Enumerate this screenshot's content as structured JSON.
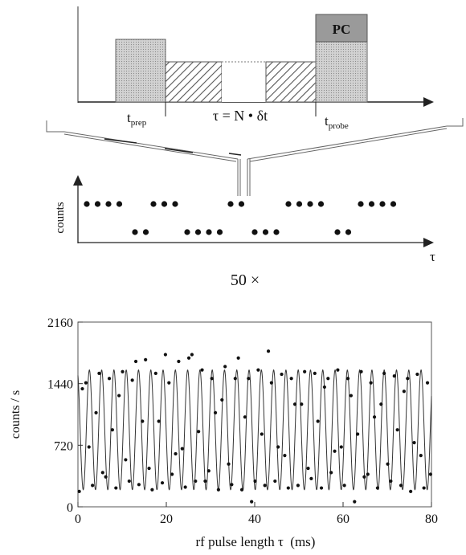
{
  "sequence": {
    "pc_label": "PC",
    "t_prep_main": "t",
    "t_prep_sub": "prep",
    "tau_label": "τ = N • δt",
    "t_probe_main": "t",
    "t_probe_sub": "probe"
  },
  "counts_panel": {
    "y_label": "counts",
    "x_label": "τ",
    "high_dot_groups": [
      4,
      3,
      2,
      4,
      4
    ],
    "low_dot_groups": [
      2,
      4,
      3,
      2
    ]
  },
  "repeat_label": "50 ×",
  "chart_data": {
    "type": "scatter",
    "title": "",
    "xlabel": "rf pulse length τ  (ms)",
    "ylabel": "counts / s",
    "xlim": [
      0,
      80
    ],
    "ylim": [
      0,
      2160
    ],
    "xticks": [
      0,
      20,
      40,
      60,
      80
    ],
    "yticks": [
      0,
      720,
      1440,
      2160
    ],
    "xtick_labels": [
      "0",
      "20",
      "40",
      "60",
      "80"
    ],
    "ytick_labels": [
      "0",
      "720",
      "1440",
      "2160"
    ],
    "fit": {
      "baseline": 200,
      "peak": 1600,
      "period_ms": 2.78,
      "phase_ms": 1.2
    },
    "points": [
      [
        0.3,
        180
      ],
      [
        1.0,
        1380
      ],
      [
        1.8,
        1450
      ],
      [
        2.5,
        700
      ],
      [
        3.3,
        250
      ],
      [
        4.1,
        1100
      ],
      [
        4.8,
        1560
      ],
      [
        5.6,
        400
      ],
      [
        6.3,
        350
      ],
      [
        7.1,
        1500
      ],
      [
        7.8,
        900
      ],
      [
        8.6,
        220
      ],
      [
        9.3,
        1300
      ],
      [
        10.1,
        1580
      ],
      [
        10.8,
        550
      ],
      [
        11.6,
        300
      ],
      [
        12.3,
        1480
      ],
      [
        13.1,
        1700
      ],
      [
        13.8,
        260
      ],
      [
        14.6,
        1000
      ],
      [
        15.3,
        1720
      ],
      [
        16.1,
        450
      ],
      [
        16.8,
        200
      ],
      [
        17.6,
        1560
      ],
      [
        18.3,
        1000
      ],
      [
        19.1,
        280
      ],
      [
        19.8,
        1780
      ],
      [
        20.6,
        1450
      ],
      [
        21.3,
        380
      ],
      [
        22.1,
        620
      ],
      [
        22.8,
        1700
      ],
      [
        23.6,
        680
      ],
      [
        24.3,
        230
      ],
      [
        25.1,
        1740
      ],
      [
        25.8,
        1780
      ],
      [
        26.6,
        300
      ],
      [
        27.3,
        880
      ],
      [
        28.1,
        1600
      ],
      [
        28.8,
        300
      ],
      [
        29.6,
        420
      ],
      [
        30.3,
        1500
      ],
      [
        31.1,
        1100
      ],
      [
        31.8,
        200
      ],
      [
        32.6,
        1250
      ],
      [
        33.3,
        1640
      ],
      [
        34.1,
        500
      ],
      [
        34.8,
        260
      ],
      [
        35.6,
        1500
      ],
      [
        36.3,
        1740
      ],
      [
        37.1,
        200
      ],
      [
        37.8,
        1050
      ],
      [
        38.6,
        1500
      ],
      [
        39.3,
        60
      ],
      [
        40.1,
        300
      ],
      [
        40.8,
        1600
      ],
      [
        41.6,
        850
      ],
      [
        42.3,
        250
      ],
      [
        43.1,
        1820
      ],
      [
        43.8,
        1450
      ],
      [
        44.6,
        300
      ],
      [
        45.3,
        700
      ],
      [
        46.1,
        1550
      ],
      [
        46.8,
        600
      ],
      [
        47.6,
        220
      ],
      [
        48.3,
        1500
      ],
      [
        49.1,
        1200
      ],
      [
        49.8,
        250
      ],
      [
        50.6,
        1200
      ],
      [
        51.3,
        1580
      ],
      [
        52.1,
        450
      ],
      [
        52.8,
        330
      ],
      [
        53.6,
        1560
      ],
      [
        54.3,
        1000
      ],
      [
        55.1,
        220
      ],
      [
        55.8,
        1400
      ],
      [
        56.6,
        1500
      ],
      [
        57.3,
        400
      ],
      [
        58.1,
        650
      ],
      [
        58.8,
        1600
      ],
      [
        59.6,
        700
      ],
      [
        60.3,
        250
      ],
      [
        61.1,
        1500
      ],
      [
        61.8,
        1300
      ],
      [
        62.6,
        60
      ],
      [
        63.3,
        850
      ],
      [
        64.1,
        1580
      ],
      [
        64.8,
        350
      ],
      [
        65.6,
        380
      ],
      [
        66.3,
        1450
      ],
      [
        67.1,
        1050
      ],
      [
        67.8,
        220
      ],
      [
        68.6,
        1200
      ],
      [
        69.3,
        1560
      ],
      [
        70.1,
        500
      ],
      [
        70.8,
        300
      ],
      [
        71.6,
        1530
      ],
      [
        72.3,
        900
      ],
      [
        73.1,
        250
      ],
      [
        73.8,
        1350
      ],
      [
        74.6,
        1500
      ],
      [
        75.3,
        180
      ],
      [
        76.1,
        750
      ],
      [
        76.8,
        1550
      ],
      [
        77.6,
        600
      ],
      [
        78.3,
        220
      ],
      [
        79.1,
        1450
      ],
      [
        79.8,
        380
      ]
    ]
  }
}
